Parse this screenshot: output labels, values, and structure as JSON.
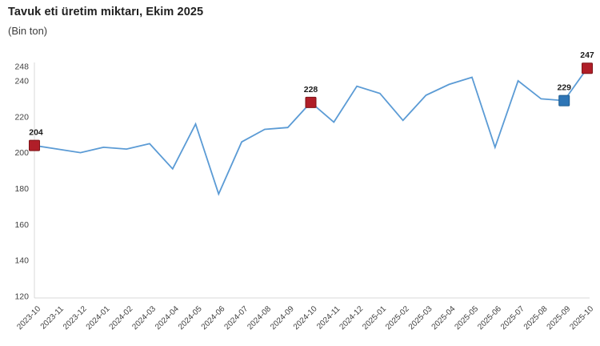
{
  "chart": {
    "title": "Tavuk eti üretim miktarı, Ekim 2025",
    "subtitle": "(Bin ton)"
  },
  "chart_data": {
    "type": "line",
    "title": "Tavuk eti üretim miktarı, Ekim 2025",
    "subtitle": "(Bin ton)",
    "x": [
      "2023-10",
      "2023-11",
      "2023-12",
      "2024-01",
      "2024-02",
      "2024-03",
      "2024-04",
      "2024-05",
      "2024-06",
      "2024-07",
      "2024-08",
      "2024-09",
      "2024-10",
      "2024-11",
      "2024-12",
      "2025-01",
      "2025-02",
      "2025-03",
      "2025-04",
      "2025-05",
      "2025-06",
      "2025-07",
      "2025-08",
      "2025-09",
      "2025-10"
    ],
    "values": [
      204,
      202,
      200,
      203,
      202,
      205,
      191,
      216,
      177,
      206,
      213,
      214,
      228,
      217,
      237,
      233,
      218,
      232,
      238,
      242,
      203,
      240,
      230,
      229,
      247
    ],
    "xlabel": "",
    "ylabel": "",
    "ylim": [
      120,
      248
    ],
    "yticks": [
      248,
      240,
      220,
      200,
      180,
      160,
      140,
      120
    ],
    "grid": false,
    "legend": "none",
    "line_color": "#5B9BD5",
    "axis_color": "#D8D8D8",
    "tick_label_color": "#404040",
    "point_label_color": "#1a1a1a",
    "annotated_points": [
      {
        "x": "2023-10",
        "value": 204,
        "label": "204",
        "marker_color": "#B01E28",
        "marker_border": "#7E1418"
      },
      {
        "x": "2024-10",
        "value": 228,
        "label": "228",
        "marker_color": "#B01E28",
        "marker_border": "#7E1418"
      },
      {
        "x": "2025-09",
        "value": 229,
        "label": "229",
        "marker_color": "#2E75B6",
        "marker_border": "#1F5C8F"
      },
      {
        "x": "2025-10",
        "value": 247,
        "label": "247",
        "marker_color": "#B01E28",
        "marker_border": "#7E1418"
      }
    ]
  }
}
